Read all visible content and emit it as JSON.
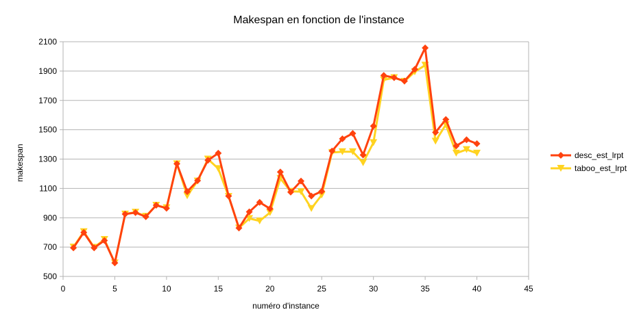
{
  "chart_data": {
    "type": "line",
    "title": "Makespan en fonction de l'instance",
    "xlabel": "numéro d'instance",
    "ylabel": "makespan",
    "xlim": [
      0,
      45
    ],
    "ylim": [
      500,
      2100
    ],
    "xticks": [
      0,
      5,
      10,
      15,
      20,
      25,
      30,
      35,
      40,
      45
    ],
    "yticks": [
      500,
      700,
      900,
      1100,
      1300,
      1500,
      1700,
      1900,
      2100
    ],
    "grid": "horizontal",
    "legend_position": "right",
    "x": [
      1,
      2,
      3,
      4,
      5,
      6,
      7,
      8,
      9,
      10,
      11,
      12,
      13,
      14,
      15,
      16,
      17,
      18,
      19,
      20,
      21,
      22,
      23,
      24,
      25,
      26,
      27,
      28,
      29,
      30,
      31,
      32,
      33,
      34,
      35,
      36,
      37,
      38,
      39,
      40
    ],
    "series": [
      {
        "name": "desc_est_lrpt",
        "color": "#ff420e",
        "marker": "diamond",
        "values": [
          695,
          800,
          695,
          745,
          592,
          925,
          935,
          907,
          985,
          965,
          1268,
          1078,
          1153,
          1292,
          1340,
          1048,
          830,
          940,
          1005,
          962,
          1212,
          1075,
          1150,
          1048,
          1080,
          1355,
          1438,
          1475,
          1328,
          1525,
          1870,
          1855,
          1832,
          1912,
          2058,
          1482,
          1570,
          1390,
          1432,
          1405
        ]
      },
      {
        "name": "taboo_est_lrpt",
        "color": "#ffd320",
        "marker": "triangle-down",
        "values": [
          700,
          805,
          698,
          752,
          592,
          925,
          938,
          910,
          985,
          968,
          1268,
          1050,
          1150,
          1300,
          1235,
          1045,
          830,
          895,
          878,
          935,
          1168,
          1080,
          1078,
          963,
          1055,
          1345,
          1350,
          1350,
          1275,
          1412,
          1840,
          1855,
          1830,
          1895,
          1940,
          1422,
          1535,
          1340,
          1365,
          1340
        ]
      }
    ]
  }
}
